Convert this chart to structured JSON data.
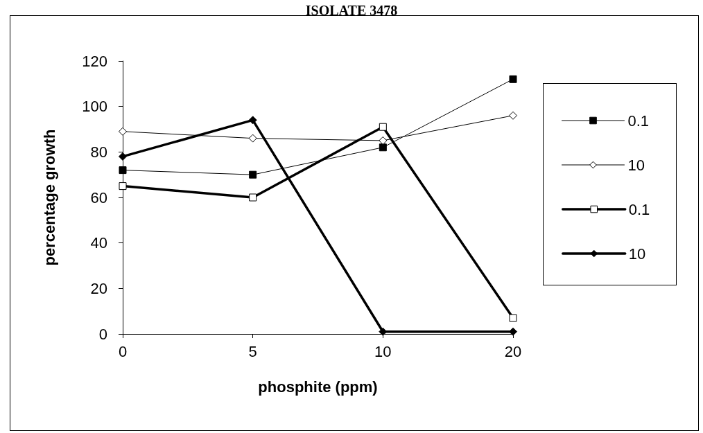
{
  "chart_data": {
    "type": "line",
    "title": "ISOLATE 3478",
    "xlabel": "phosphite (ppm)",
    "ylabel": "percentage growth",
    "categories": [
      "0",
      "5",
      "10",
      "20"
    ],
    "series": [
      {
        "name": "0.1",
        "color": "#000000",
        "marker": "square",
        "values": [
          72,
          70,
          82,
          112
        ]
      },
      {
        "name": "10",
        "color": "#000000",
        "marker": "diamond",
        "values": [
          89,
          86,
          85,
          96
        ]
      },
      {
        "name": "0.1",
        "color": "#000000",
        "marker": "square",
        "values": [
          65,
          60,
          91,
          7
        ]
      },
      {
        "name": "10",
        "color": "#000000",
        "marker": "diamond",
        "values": [
          78,
          94,
          1,
          1
        ]
      }
    ],
    "ylim": [
      0,
      120
    ],
    "yticks": [
      0,
      20,
      40,
      60,
      80,
      100,
      120
    ],
    "grid": false,
    "legend": "right",
    "line_style": "solid"
  }
}
